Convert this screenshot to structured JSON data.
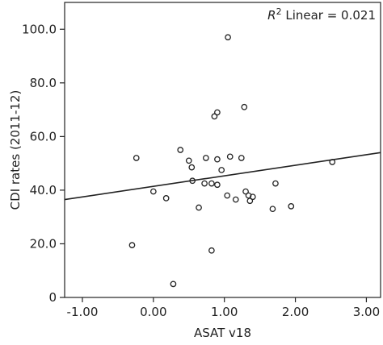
{
  "chart_data": {
    "type": "scatter",
    "xlabel": "ASAT v18",
    "ylabel": "CDI rates (2011-12)",
    "xlim": [
      -1.25,
      3.2
    ],
    "ylim": [
      0,
      110
    ],
    "x_ticks": [
      -1.0,
      0.0,
      1.0,
      2.0,
      3.0
    ],
    "x_tick_labels": [
      "-1.00",
      "0.00",
      "1.00",
      "2.00",
      "3.00"
    ],
    "y_ticks": [
      0,
      20,
      40,
      60,
      80,
      100
    ],
    "y_tick_labels": [
      "0",
      "20.0",
      "40.0",
      "60.0",
      "80.0",
      "100.0"
    ],
    "grid": false,
    "annotation": {
      "r_symbol": "R",
      "superscript": "2",
      "text": " Linear = 0.021"
    },
    "fit_line": {
      "x0": -1.25,
      "y0": 36.5,
      "x1": 3.2,
      "y1": 54.0
    },
    "points": [
      {
        "x": 1.05,
        "y": 97.0
      },
      {
        "x": 1.28,
        "y": 71.0
      },
      {
        "x": 0.9,
        "y": 69.0
      },
      {
        "x": 0.86,
        "y": 67.5
      },
      {
        "x": -0.24,
        "y": 52.0
      },
      {
        "x": 0.38,
        "y": 55.0
      },
      {
        "x": 0.5,
        "y": 51.0
      },
      {
        "x": 0.54,
        "y": 48.5
      },
      {
        "x": 0.74,
        "y": 52.0
      },
      {
        "x": 0.9,
        "y": 51.5
      },
      {
        "x": 1.08,
        "y": 52.5
      },
      {
        "x": 1.24,
        "y": 52.0
      },
      {
        "x": 0.96,
        "y": 47.5
      },
      {
        "x": 2.52,
        "y": 50.5
      },
      {
        "x": 0.55,
        "y": 43.5
      },
      {
        "x": 0.72,
        "y": 42.5
      },
      {
        "x": 0.82,
        "y": 42.5
      },
      {
        "x": 0.9,
        "y": 42.0
      },
      {
        "x": 1.72,
        "y": 42.5
      },
      {
        "x": 0.0,
        "y": 39.5
      },
      {
        "x": 0.18,
        "y": 37.0
      },
      {
        "x": 1.04,
        "y": 38.0
      },
      {
        "x": 1.16,
        "y": 36.5
      },
      {
        "x": 1.3,
        "y": 39.5
      },
      {
        "x": 1.34,
        "y": 38.0
      },
      {
        "x": 1.36,
        "y": 36.0
      },
      {
        "x": 1.4,
        "y": 37.5
      },
      {
        "x": 0.64,
        "y": 33.5
      },
      {
        "x": 1.68,
        "y": 33.0
      },
      {
        "x": 1.94,
        "y": 34.0
      },
      {
        "x": -0.3,
        "y": 19.5
      },
      {
        "x": 0.82,
        "y": 17.5
      },
      {
        "x": 0.28,
        "y": 5.0
      }
    ]
  }
}
